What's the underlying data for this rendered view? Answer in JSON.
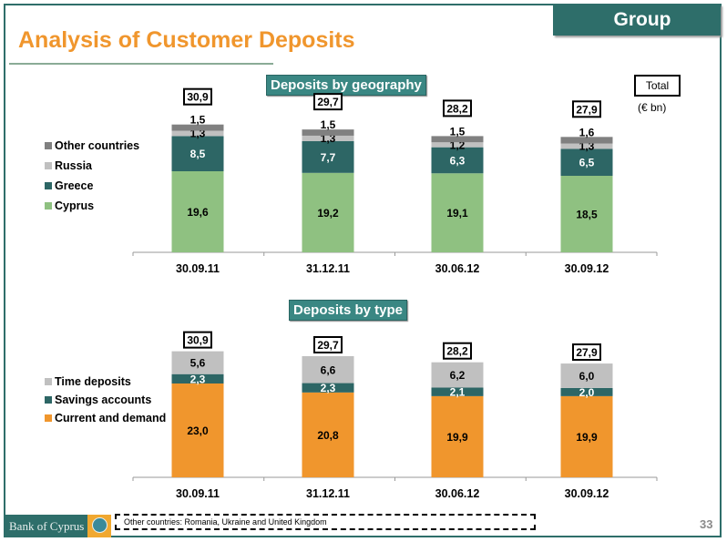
{
  "header": {
    "title": "Analysis of Customer Deposits",
    "group_label": "Group",
    "total_label": "Total",
    "unit_label": "(€ bn)"
  },
  "footer": {
    "logo_text": "Bank of Cyprus",
    "footnote": "Other countries: Romania, Ukraine and United Kingdom",
    "page_number": "33"
  },
  "colors": {
    "accent_orange": "#f0962d",
    "brand_teal": "#2e6e6a",
    "cyprus": "#8fc181",
    "greece": "#2d6665",
    "russia": "#c0c0c0",
    "other": "#808080",
    "time": "#c0c0c0",
    "savings": "#2d6665",
    "current": "#f0962d"
  },
  "chart_data": [
    {
      "type": "bar",
      "stacked": true,
      "title": "Deposits by geography",
      "categories": [
        "30.09.11",
        "31.12.11",
        "30.06.12",
        "30.09.12"
      ],
      "totals": [
        "30,9",
        "29,7",
        "28,2",
        "27,9"
      ],
      "series": [
        {
          "name": "Cyprus",
          "values": [
            19.6,
            19.2,
            19.1,
            18.5
          ],
          "labels": [
            "19,6",
            "19,2",
            "19,1",
            "18,5"
          ],
          "color": "#8fc181",
          "label_color": "#000"
        },
        {
          "name": "Greece",
          "values": [
            8.5,
            7.7,
            6.3,
            6.5
          ],
          "labels": [
            "8,5",
            "7,7",
            "6,3",
            "6,5"
          ],
          "color": "#2d6665",
          "label_color": "#fff"
        },
        {
          "name": "Russia",
          "values": [
            1.3,
            1.3,
            1.2,
            1.3
          ],
          "labels": [
            "1,3",
            "1,3",
            "1,2",
            "1,3"
          ],
          "color": "#c0c0c0",
          "label_color": "#000"
        },
        {
          "name": "Other countries",
          "values": [
            1.5,
            1.5,
            1.5,
            1.6
          ],
          "labels": [
            "1,5",
            "1,5",
            "1,5",
            "1,6"
          ],
          "color": "#808080",
          "label_color": "#000"
        }
      ],
      "legend": [
        "Other countries",
        "Russia",
        "Greece",
        "Cyprus"
      ],
      "xlabel": "",
      "ylabel": "",
      "ylim": [
        0,
        32
      ]
    },
    {
      "type": "bar",
      "stacked": true,
      "title": "Deposits by type",
      "categories": [
        "30.09.11",
        "31.12.11",
        "30.06.12",
        "30.09.12"
      ],
      "totals": [
        "30,9",
        "29,7",
        "28,2",
        "27,9"
      ],
      "series": [
        {
          "name": "Current and demand",
          "values": [
            23.0,
            20.8,
            19.9,
            19.9
          ],
          "labels": [
            "23,0",
            "20,8",
            "19,9",
            "19,9"
          ],
          "color": "#f0962d",
          "label_color": "#000"
        },
        {
          "name": "Savings accounts",
          "values": [
            2.3,
            2.3,
            2.1,
            2.0
          ],
          "labels": [
            "2,3",
            "2,3",
            "2,1",
            "2,0"
          ],
          "color": "#2d6665",
          "label_color": "#fff"
        },
        {
          "name": "Time deposits",
          "values": [
            5.6,
            6.6,
            6.2,
            6.0
          ],
          "labels": [
            "5,6",
            "6,6",
            "6,2",
            "6,0"
          ],
          "color": "#c0c0c0",
          "label_color": "#000"
        }
      ],
      "legend": [
        "Time deposits",
        "Savings accounts",
        "Current and demand"
      ],
      "xlabel": "",
      "ylabel": "",
      "ylim": [
        0,
        32
      ]
    }
  ]
}
